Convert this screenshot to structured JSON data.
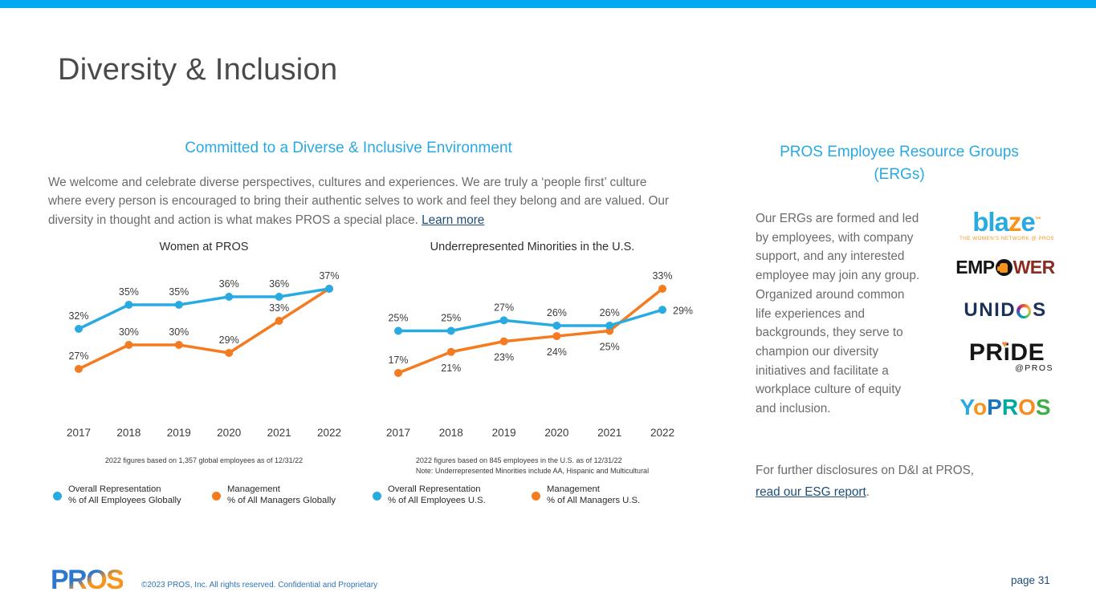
{
  "page": {
    "title": "Diversity & Inclusion",
    "accent_cyan": "#29A9E1",
    "topbar_color": "#00A9F0",
    "line_blue": "#29ABE2",
    "line_orange": "#F47B20"
  },
  "left": {
    "heading": "Committed to a Diverse & Inclusive Environment",
    "body": "We welcome and celebrate diverse perspectives, cultures and experiences. We are truly a ‘people first’ culture where every person is encouraged to bring their authentic selves to work and feel they belong and are valued. Our diversity in thought and action is what makes PROS a special place. ",
    "learn_more_label": "Learn more"
  },
  "chart_data": [
    {
      "type": "line",
      "title": "Women at PROS",
      "categories": [
        "2017",
        "2018",
        "2019",
        "2020",
        "2021",
        "2022"
      ],
      "grid": false,
      "legend_position": "bottom",
      "series": [
        {
          "name": "Overall Representation",
          "sublabel": "% of All Employees Globally",
          "color": "#29ABE2",
          "values": [
            32,
            35,
            35,
            36,
            36,
            37
          ],
          "labels": [
            "32%",
            "35%",
            "35%",
            "36%",
            "36%",
            "37%"
          ],
          "label_pos": [
            "above",
            "above",
            "above",
            "above",
            "above",
            "above"
          ]
        },
        {
          "name": "Management",
          "sublabel": "% of All Managers Globally",
          "color": "#F47B20",
          "values": [
            27,
            30,
            30,
            29,
            33,
            37
          ],
          "labels": [
            "27%",
            "30%",
            "30%",
            "29%",
            "33%",
            ""
          ],
          "label_pos": [
            "above",
            "above",
            "above",
            "above",
            "above",
            "none"
          ]
        }
      ],
      "footnotes": [
        "2022 figures based on 1,357 global employees as of 12/31/22"
      ]
    },
    {
      "type": "line",
      "title": "Underrepresented Minorities in the U.S.",
      "categories": [
        "2017",
        "2018",
        "2019",
        "2020",
        "2021",
        "2022"
      ],
      "grid": false,
      "legend_position": "bottom",
      "series": [
        {
          "name": "Overall Representation",
          "sublabel": "% of All Employees U.S.",
          "color": "#29ABE2",
          "values": [
            25,
            25,
            27,
            26,
            26,
            29
          ],
          "labels": [
            "25%",
            "25%",
            "27%",
            "26%",
            "26%",
            "29%"
          ],
          "label_pos": [
            "above",
            "above",
            "above",
            "above",
            "above",
            "right"
          ]
        },
        {
          "name": "Management",
          "sublabel": "% of All Managers U.S.",
          "color": "#F47B20",
          "values": [
            17,
            21,
            23,
            24,
            25,
            33
          ],
          "labels": [
            "17%",
            "21%",
            "23%",
            "24%",
            "25%",
            "33%"
          ],
          "label_pos": [
            "above",
            "below",
            "below",
            "below",
            "below",
            "above"
          ]
        }
      ],
      "footnotes": [
        "2022 figures based on 845 employees in the U.S. as of 12/31/22",
        "Note: Underrepresented Minorities include AA, Hispanic and Multicultural"
      ]
    }
  ],
  "right": {
    "heading_line1": "PROS Employee Resource Groups",
    "heading_line2": "(ERGs)",
    "body": "Our ERGs are formed and led by employees, with company support, and any interested employee may join any group. Organized around common life experiences and backgrounds, they serve to champion our diversity initiatives and facilitate a workplace culture of equity and inclusion.",
    "disclosure_text": "For further disclosures on D&I at PROS, ",
    "disclosure_link_label": "read our ESG report",
    "disclosure_suffix": ".",
    "logos": {
      "blaze": {
        "part1": "bla",
        "part2": "z",
        "part3": "e",
        "tm": "™",
        "subtitle": "THE WOMEN'S NETWORK @ PROS"
      },
      "empower": {
        "prefix": "EMP",
        "suffix": "WER"
      },
      "unidos": {
        "prefix": "UNID",
        "suffix": "S"
      },
      "pride": {
        "prefix": "PR",
        "i_char": "i",
        "suffix": "DE",
        "heart": "♥",
        "subtitle": "@PROS"
      },
      "yopros": {
        "letters": [
          {
            "ch": "Y",
            "color": "#29ABE2"
          },
          {
            "ch": "o",
            "color": "#F7941D"
          },
          {
            "ch": "P",
            "color": "#1C75BC"
          },
          {
            "ch": "R",
            "color": "#00A99D"
          },
          {
            "ch": "O",
            "color": "#F68B1F"
          },
          {
            "ch": "S",
            "color": "#3DAE49"
          }
        ]
      }
    }
  },
  "footer": {
    "logo_text": "PROS",
    "copyright": "©2023 PROS, Inc. All rights reserved. Confidential and Proprietary",
    "page_label": "page 31"
  }
}
